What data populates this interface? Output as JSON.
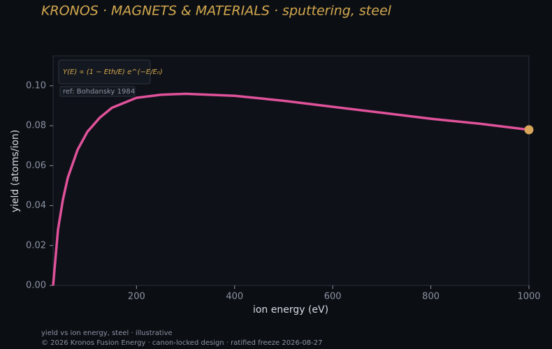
{
  "chart_data": {
    "type": "line",
    "title": "KRONOS · MAGNETS & MATERIALS  ·  sputtering, steel",
    "x_label": "ion energy (eV)",
    "y_label": "yield (atoms/ion)",
    "formula": "Y(E) ∝ (1 − Eth/E) e^(−E/E₀)",
    "note": "ref: Bohdansky 1984",
    "footer": [
      "yield vs ion energy, steel · illustrative",
      "© 2026 Kronos Fusion Energy · canon-locked design · ratified freeze 2026-08-27"
    ],
    "x": [
      30,
      40,
      50,
      60,
      80,
      100,
      125,
      150,
      200,
      250,
      300,
      400,
      500,
      600,
      700,
      800,
      900,
      1000
    ],
    "series": [
      {
        "name": "steel",
        "color": "#e0529a",
        "values": [
          0.0,
          0.028,
          0.043,
          0.054,
          0.068,
          0.077,
          0.084,
          0.089,
          0.094,
          0.0955,
          0.096,
          0.095,
          0.0925,
          0.0895,
          0.0865,
          0.0835,
          0.081,
          0.078
        ]
      }
    ],
    "end_marker_color": "#d9a55a",
    "xlim": [
      30,
      1000
    ],
    "xticks": [
      200,
      400,
      600,
      800,
      1000
    ],
    "ylim": [
      0,
      0.115
    ],
    "yticks": [
      {
        "value": 0,
        "label": "0.00"
      },
      {
        "value": 0.02,
        "label": "0.02"
      },
      {
        "value": 0.04,
        "label": "0.04"
      },
      {
        "value": 0.06,
        "label": "0.06"
      },
      {
        "value": 0.08,
        "label": "0.08"
      },
      {
        "value": 0.1,
        "label": "0.10"
      }
    ]
  }
}
